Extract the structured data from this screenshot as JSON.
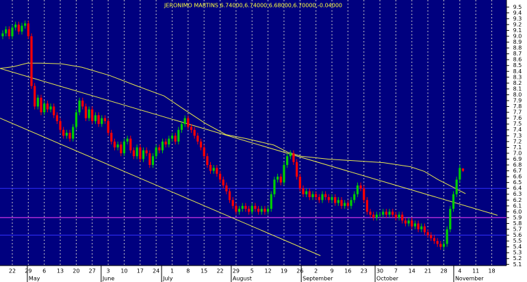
{
  "chart_data": {
    "type": "candlestick",
    "title": "JERONIMO MARTINS 6.74000,6.74000,6.68000,6.70000,-0.04000",
    "up_color": "#00d000",
    "down_color": "#ff0000",
    "background": "#00007f",
    "grid": true,
    "xlim": [
      -3.85,
      154.6
    ],
    "ylim": [
      5.08,
      9.62
    ],
    "xticks": [
      {
        "value": 0,
        "label": "22"
      },
      {
        "value": 5,
        "label": "29"
      },
      {
        "value": 10,
        "label": "6"
      },
      {
        "value": 15,
        "label": "13"
      },
      {
        "value": 20,
        "label": "20"
      },
      {
        "value": 25,
        "label": "27"
      },
      {
        "value": 30,
        "label": "3"
      },
      {
        "value": 35,
        "label": "10"
      },
      {
        "value": 40,
        "label": "17"
      },
      {
        "value": 45,
        "label": "24"
      },
      {
        "value": 50,
        "label": "1"
      },
      {
        "value": 55,
        "label": "8"
      },
      {
        "value": 60,
        "label": "15"
      },
      {
        "value": 65,
        "label": "22"
      },
      {
        "value": 70,
        "label": "29"
      },
      {
        "value": 75,
        "label": "5"
      },
      {
        "value": 80,
        "label": "12"
      },
      {
        "value": 85,
        "label": "19"
      },
      {
        "value": 90,
        "label": "26"
      },
      {
        "value": 95,
        "label": "2"
      },
      {
        "value": 100,
        "label": "9"
      },
      {
        "value": 105,
        "label": "16"
      },
      {
        "value": 110,
        "label": "23"
      },
      {
        "value": 115,
        "label": "30"
      },
      {
        "value": 120,
        "label": "7"
      },
      {
        "value": 125,
        "label": "14"
      },
      {
        "value": 130,
        "label": "21"
      },
      {
        "value": 135,
        "label": "28"
      },
      {
        "value": 140,
        "label": "4"
      },
      {
        "value": 145,
        "label": "11"
      },
      {
        "value": 150,
        "label": "18"
      }
    ],
    "month_ticks": [
      {
        "value": 4.7,
        "label": "May"
      },
      {
        "value": 27.8,
        "label": "June"
      },
      {
        "value": 46.7,
        "label": "July"
      },
      {
        "value": 68.5,
        "label": "August"
      },
      {
        "value": 90.4,
        "label": "September"
      },
      {
        "value": 113.5,
        "label": "October"
      },
      {
        "value": 138.1,
        "label": "November"
      }
    ],
    "yticks": [
      {
        "value": 5.1,
        "label": "5.1"
      },
      {
        "value": 5.2,
        "label": "5.2"
      },
      {
        "value": 5.3,
        "label": "5.3"
      },
      {
        "value": 5.4,
        "label": "5.4"
      },
      {
        "value": 5.5,
        "label": "5.5"
      },
      {
        "value": 5.6,
        "label": "5.6"
      },
      {
        "value": 5.7,
        "label": "5.7"
      },
      {
        "value": 5.8,
        "label": "5.8"
      },
      {
        "value": 5.9,
        "label": "5.9"
      },
      {
        "value": 6,
        "label": "6.0"
      },
      {
        "value": 6.1,
        "label": "6.1"
      },
      {
        "value": 6.2,
        "label": "6.2"
      },
      {
        "value": 6.3,
        "label": "6.3"
      },
      {
        "value": 6.4,
        "label": "6.4"
      },
      {
        "value": 6.5,
        "label": "6.5"
      },
      {
        "value": 6.6,
        "label": "6.6"
      },
      {
        "value": 6.7,
        "label": "6.7"
      },
      {
        "value": 6.8,
        "label": "6.8"
      },
      {
        "value": 6.9,
        "label": "6.9"
      },
      {
        "value": 7,
        "label": "7.0"
      },
      {
        "value": 7.1,
        "label": "7.1"
      },
      {
        "value": 7.2,
        "label": "7.2"
      },
      {
        "value": 7.3,
        "label": "7.3"
      },
      {
        "value": 7.4,
        "label": "7.4"
      },
      {
        "value": 7.5,
        "label": "7.5"
      },
      {
        "value": 7.6,
        "label": "7.6"
      },
      {
        "value": 7.7,
        "label": "7.7"
      },
      {
        "value": 7.8,
        "label": "7.8"
      },
      {
        "value": 7.9,
        "label": "7.9"
      },
      {
        "value": 8,
        "label": "8.0"
      },
      {
        "value": 8.1,
        "label": "8.1"
      },
      {
        "value": 8.2,
        "label": "8.2"
      },
      {
        "value": 8.3,
        "label": "8.3"
      },
      {
        "value": 8.4,
        "label": "8.4"
      },
      {
        "value": 8.5,
        "label": "8.5"
      },
      {
        "value": 8.6,
        "label": "8.6"
      },
      {
        "value": 8.7,
        "label": "8.7"
      },
      {
        "value": 8.8,
        "label": "8.8"
      },
      {
        "value": 8.9,
        "label": "8.9"
      },
      {
        "value": 9,
        "label": "9.0"
      },
      {
        "value": 9.1,
        "label": "9.1"
      },
      {
        "value": 9.2,
        "label": "9.2"
      },
      {
        "value": 9.3,
        "label": "9.3"
      },
      {
        "value": 9.4,
        "label": "9.4"
      },
      {
        "value": 9.5,
        "label": "9.5"
      }
    ],
    "candles": {
      "x": [
        -3,
        -2,
        -1,
        0,
        1,
        2,
        3,
        4,
        5,
        6,
        7,
        8,
        9,
        10,
        11,
        12,
        13,
        14,
        15,
        16,
        17,
        18,
        19,
        20,
        21,
        22,
        23,
        24,
        25,
        26,
        27,
        28,
        29,
        30,
        31,
        32,
        33,
        34,
        35,
        36,
        37,
        38,
        39,
        40,
        41,
        42,
        43,
        44,
        45,
        46,
        47,
        48,
        49,
        50,
        51,
        52,
        53,
        54,
        55,
        56,
        57,
        58,
        59,
        60,
        61,
        62,
        63,
        64,
        65,
        66,
        67,
        68,
        69,
        70,
        71,
        72,
        73,
        74,
        75,
        76,
        77,
        78,
        79,
        80,
        81,
        82,
        83,
        84,
        85,
        86,
        87,
        88,
        89,
        90,
        91,
        92,
        93,
        94,
        95,
        96,
        97,
        98,
        99,
        100,
        101,
        102,
        103,
        104,
        105,
        106,
        107,
        108,
        109,
        110,
        111,
        112,
        113,
        114,
        115,
        116,
        117,
        118,
        119,
        120,
        121,
        122,
        123,
        124,
        125,
        126,
        127,
        128,
        129,
        130,
        131,
        132,
        133,
        134,
        135,
        136,
        137,
        138,
        139,
        140,
        141
      ],
      "open": [
        9.0,
        9.05,
        9.12,
        9.0,
        9.15,
        9.2,
        9.08,
        9.18,
        9.22,
        9.0,
        8.15,
        7.8,
        7.95,
        7.7,
        7.85,
        7.75,
        7.8,
        7.65,
        7.55,
        7.4,
        7.3,
        7.35,
        7.25,
        7.45,
        7.7,
        7.9,
        7.8,
        7.6,
        7.75,
        7.55,
        7.65,
        7.5,
        7.6,
        7.55,
        7.35,
        7.2,
        7.1,
        7.15,
        7.0,
        7.2,
        7.25,
        7.05,
        6.95,
        7.1,
        6.9,
        7.05,
        7.0,
        6.8,
        6.95,
        7.1,
        7.05,
        7.2,
        7.15,
        7.25,
        7.3,
        7.2,
        7.4,
        7.5,
        7.6,
        7.45,
        7.4,
        7.3,
        7.2,
        7.1,
        6.95,
        6.8,
        6.7,
        6.75,
        6.65,
        6.55,
        6.45,
        6.35,
        6.2,
        6.1,
        6.0,
        6.05,
        6.1,
        6.05,
        6.0,
        6.1,
        6.05,
        6.0,
        6.05,
        6.0,
        6.05,
        6.3,
        6.55,
        6.6,
        6.5,
        6.8,
        6.95,
        7.0,
        6.85,
        6.6,
        6.4,
        6.3,
        6.35,
        6.25,
        6.3,
        6.25,
        6.2,
        6.3,
        6.25,
        6.2,
        6.25,
        6.15,
        6.2,
        6.1,
        6.15,
        6.1,
        6.2,
        6.3,
        6.45,
        6.4,
        6.2,
        6.0,
        5.95,
        5.9,
        5.95,
        5.95,
        6.0,
        5.95,
        6.0,
        5.95,
        5.9,
        5.95,
        5.85,
        5.8,
        5.85,
        5.75,
        5.8,
        5.7,
        5.75,
        5.65,
        5.6,
        5.55,
        5.5,
        5.45,
        5.4,
        5.45,
        5.7,
        6.05,
        6.3,
        6.55,
        6.74
      ],
      "high": [
        9.1,
        9.17,
        9.17,
        9.2,
        9.25,
        9.25,
        9.23,
        9.27,
        9.27,
        9.05,
        8.2,
        8.0,
        8.0,
        7.9,
        7.9,
        7.85,
        7.85,
        7.7,
        7.6,
        7.45,
        7.4,
        7.4,
        7.5,
        7.75,
        7.95,
        7.95,
        7.85,
        7.8,
        7.8,
        7.7,
        7.7,
        7.65,
        7.65,
        7.6,
        7.4,
        7.25,
        7.2,
        7.2,
        7.25,
        7.3,
        7.3,
        7.1,
        7.15,
        7.15,
        7.1,
        7.1,
        7.05,
        7.0,
        7.15,
        7.15,
        7.25,
        7.25,
        7.3,
        7.35,
        7.35,
        7.45,
        7.55,
        7.65,
        7.65,
        7.5,
        7.45,
        7.35,
        7.25,
        7.15,
        7.0,
        6.85,
        6.8,
        6.8,
        6.7,
        6.6,
        6.5,
        6.4,
        6.25,
        6.15,
        6.1,
        6.15,
        6.15,
        6.1,
        6.15,
        6.15,
        6.1,
        6.1,
        6.1,
        6.1,
        6.35,
        6.6,
        6.65,
        6.65,
        6.85,
        7.0,
        7.05,
        7.05,
        6.9,
        6.65,
        6.45,
        6.4,
        6.4,
        6.35,
        6.35,
        6.3,
        6.35,
        6.35,
        6.3,
        6.3,
        6.3,
        6.25,
        6.25,
        6.2,
        6.2,
        6.25,
        6.35,
        6.5,
        6.5,
        6.45,
        6.25,
        6.05,
        6.0,
        6.0,
        6.0,
        6.05,
        6.05,
        6.05,
        6.05,
        6.0,
        6.0,
        6.0,
        5.9,
        5.9,
        5.9,
        5.85,
        5.85,
        5.8,
        5.8,
        5.7,
        5.65,
        5.6,
        5.55,
        5.5,
        5.5,
        5.75,
        6.1,
        6.35,
        6.6,
        6.8,
        6.74
      ],
      "low": [
        8.95,
        9.0,
        8.95,
        8.95,
        9.1,
        9.03,
        9.03,
        9.13,
        8.95,
        8.1,
        7.75,
        7.75,
        7.65,
        7.65,
        7.7,
        7.7,
        7.6,
        7.5,
        7.35,
        7.25,
        7.25,
        7.2,
        7.2,
        7.4,
        7.65,
        7.75,
        7.55,
        7.55,
        7.5,
        7.5,
        7.45,
        7.45,
        7.5,
        7.3,
        7.15,
        7.05,
        7.05,
        6.95,
        6.95,
        7.15,
        7.0,
        6.9,
        6.9,
        6.85,
        6.85,
        6.95,
        6.75,
        6.75,
        6.9,
        7.0,
        7.0,
        7.1,
        7.1,
        7.2,
        7.15,
        7.15,
        7.35,
        7.45,
        7.4,
        7.35,
        7.25,
        7.15,
        7.05,
        6.9,
        6.75,
        6.65,
        6.65,
        6.6,
        6.5,
        6.4,
        6.3,
        6.15,
        6.05,
        5.95,
        5.95,
        6.0,
        6.0,
        5.95,
        5.95,
        6.0,
        5.95,
        5.95,
        5.95,
        5.95,
        6.0,
        6.25,
        6.5,
        6.45,
        6.45,
        6.75,
        6.9,
        6.8,
        6.55,
        6.35,
        6.25,
        6.25,
        6.2,
        6.2,
        6.2,
        6.15,
        6.15,
        6.2,
        6.15,
        6.15,
        6.1,
        6.1,
        6.05,
        6.05,
        6.05,
        6.05,
        6.15,
        6.25,
        6.35,
        6.15,
        5.95,
        5.9,
        5.85,
        5.85,
        5.9,
        5.9,
        5.9,
        5.9,
        5.9,
        5.85,
        5.85,
        5.8,
        5.75,
        5.75,
        5.7,
        5.7,
        5.65,
        5.65,
        5.6,
        5.55,
        5.5,
        5.45,
        5.4,
        5.35,
        5.35,
        5.4,
        5.65,
        6.0,
        6.25,
        6.5,
        6.68
      ],
      "close": [
        9.05,
        9.12,
        9.0,
        9.15,
        9.2,
        9.08,
        9.18,
        9.22,
        9.0,
        8.15,
        7.8,
        7.95,
        7.7,
        7.85,
        7.75,
        7.8,
        7.65,
        7.55,
        7.4,
        7.3,
        7.35,
        7.25,
        7.45,
        7.7,
        7.9,
        7.8,
        7.6,
        7.75,
        7.55,
        7.65,
        7.5,
        7.6,
        7.55,
        7.35,
        7.2,
        7.1,
        7.15,
        7.0,
        7.2,
        7.25,
        7.05,
        6.95,
        7.1,
        6.9,
        7.05,
        7.0,
        6.8,
        6.95,
        7.1,
        7.05,
        7.2,
        7.15,
        7.25,
        7.3,
        7.2,
        7.4,
        7.5,
        7.6,
        7.45,
        7.4,
        7.3,
        7.2,
        7.1,
        6.95,
        6.8,
        6.7,
        6.75,
        6.65,
        6.55,
        6.45,
        6.35,
        6.2,
        6.1,
        6.0,
        6.05,
        6.1,
        6.05,
        6.0,
        6.1,
        6.05,
        6.0,
        6.05,
        6.0,
        6.05,
        6.3,
        6.55,
        6.6,
        6.5,
        6.8,
        6.95,
        7.0,
        6.85,
        6.6,
        6.4,
        6.3,
        6.35,
        6.25,
        6.3,
        6.25,
        6.2,
        6.3,
        6.25,
        6.2,
        6.25,
        6.15,
        6.2,
        6.1,
        6.15,
        6.1,
        6.2,
        6.3,
        6.45,
        6.4,
        6.2,
        6.0,
        5.95,
        5.9,
        5.95,
        5.95,
        6.0,
        5.95,
        6.0,
        5.95,
        5.9,
        5.95,
        5.85,
        5.8,
        5.85,
        5.75,
        5.8,
        5.7,
        5.75,
        5.65,
        5.6,
        5.55,
        5.5,
        5.45,
        5.4,
        5.45,
        5.7,
        6.05,
        6.3,
        6.55,
        6.75,
        6.7
      ]
    },
    "lines": [
      {
        "color": "#e8e850",
        "x": [
          -3.85,
          0.4,
          4.7,
          9.0,
          15.4,
          21.8,
          30.4,
          39.0,
          47.5,
          54.0,
          60.4,
          66.8,
          73.2,
          81.8,
          86.1,
          90.4,
          98.9,
          107.5,
          116.1,
          124.6,
          128.9,
          133.2,
          137.5,
          141.8
        ],
        "values": [
          8.45,
          8.48,
          8.54,
          8.54,
          8.53,
          8.47,
          8.33,
          8.15,
          7.98,
          7.74,
          7.51,
          7.32,
          7.25,
          7.14,
          7.02,
          6.95,
          6.9,
          6.87,
          6.84,
          6.77,
          6.69,
          6.55,
          6.43,
          6.31
        ]
      },
      {
        "color": "#e8e850",
        "x": [
          -3.85,
          151.8
        ],
        "values": [
          8.45,
          5.94
        ]
      },
      {
        "color": "#e8e850",
        "x": [
          -3.85,
          96.4
        ],
        "values": [
          7.6,
          5.25
        ]
      }
    ],
    "hlines": [
      {
        "value": 6.4,
        "color": "#3030ff"
      },
      {
        "value": 5.6,
        "color": "#3030ff"
      },
      {
        "value": 5.9,
        "color": "#ff40ff"
      }
    ]
  }
}
